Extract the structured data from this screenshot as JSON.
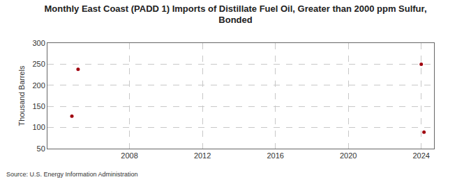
{
  "chart_data": {
    "type": "scatter",
    "title": "Monthly East Coast (PADD 1) Imports of Distillate Fuel Oil, Greater than 2000 ppm Sulfur,\nBonded",
    "y_label": "Thousand Barrels",
    "annotations": [
      "Source: U.S. Energy Information Administration"
    ],
    "x": [
      2004.84,
      2005.18,
      2024.0,
      2024.15
    ],
    "values": [
      127,
      238,
      250,
      89
    ],
    "color": "#a0000f",
    "marker": "circle",
    "xlim": [
      2003.5,
      2024.7
    ],
    "xticks": [
      2008,
      2012,
      2016,
      2020,
      2024
    ],
    "ylim": [
      50,
      300
    ],
    "yticks": [
      50,
      100,
      150,
      200,
      250,
      300
    ],
    "grid": true
  }
}
